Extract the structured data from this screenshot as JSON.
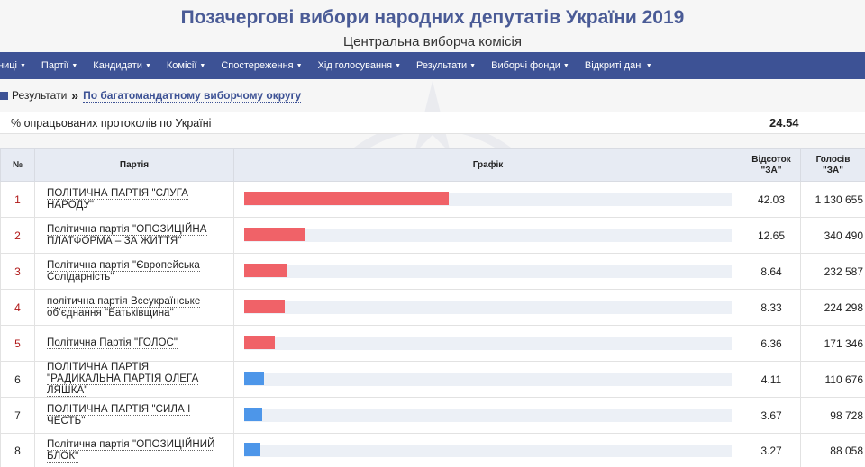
{
  "header": {
    "title": "Позачергові вибори народних депутатів України 2019",
    "subtitle": "Центральна виборча комісія"
  },
  "nav": [
    {
      "label": "ниці"
    },
    {
      "label": "Партії"
    },
    {
      "label": "Кандидати"
    },
    {
      "label": "Комісії"
    },
    {
      "label": "Спостереження"
    },
    {
      "label": "Хід голосування"
    },
    {
      "label": "Результати"
    },
    {
      "label": "Виборчі фонди"
    },
    {
      "label": "Відкриті дані"
    }
  ],
  "breadcrumb": {
    "home": "Результати",
    "separator": "»",
    "current": "По багатомандатному виборчому округу"
  },
  "progress": {
    "label": "% опрацьованих протоколів по Україні",
    "value": "24.54"
  },
  "table": {
    "headers": {
      "num": "№",
      "party": "Партія",
      "graph": "Графік",
      "pct_line1": "Відсоток",
      "pct_line2": "\"ЗА\"",
      "votes_line1": "Голосів",
      "votes_line2": "\"ЗА\""
    },
    "max_percent": 100,
    "rows": [
      {
        "num": "1",
        "party": "ПОЛІТИЧНА ПАРТІЯ \"СЛУГА НАРОДУ\"",
        "percent": "42.03",
        "votes": "1 130 655",
        "bar_color": "red"
      },
      {
        "num": "2",
        "party": "Політична партія \"ОПОЗИЦІЙНА ПЛАТФОРМА – ЗА ЖИТТЯ\"",
        "percent": "12.65",
        "votes": "340 490",
        "bar_color": "red"
      },
      {
        "num": "3",
        "party": "Політична партія \"Європейська Солідарність\"",
        "percent": "8.64",
        "votes": "232 587",
        "bar_color": "red"
      },
      {
        "num": "4",
        "party": "політична партія Всеукраїнське об’єднання \"Батьківщина\"",
        "percent": "8.33",
        "votes": "224 298",
        "bar_color": "red"
      },
      {
        "num": "5",
        "party": "Політична Партія \"ГОЛОС\"",
        "percent": "6.36",
        "votes": "171 346",
        "bar_color": "red"
      },
      {
        "num": "6",
        "party": "ПОЛІТИЧНА ПАРТІЯ \"РАДИКАЛЬНА ПАРТІЯ ОЛЕГА ЛЯШКА\"",
        "percent": "4.11",
        "votes": "110 676",
        "bar_color": "blue"
      },
      {
        "num": "7",
        "party": "ПОЛІТИЧНА ПАРТІЯ \"СИЛА І ЧЕСТЬ\"",
        "percent": "3.67",
        "votes": "98 728",
        "bar_color": "blue"
      },
      {
        "num": "8",
        "party": "Політична партія \"ОПОЗИЦІЙНИЙ БЛОК\"",
        "percent": "3.27",
        "votes": "88 058",
        "bar_color": "blue"
      }
    ]
  },
  "colors": {
    "accent": "#3d5295",
    "bar_red": "#f06268",
    "bar_blue": "#4d96e9",
    "title": "#4a5b96"
  }
}
